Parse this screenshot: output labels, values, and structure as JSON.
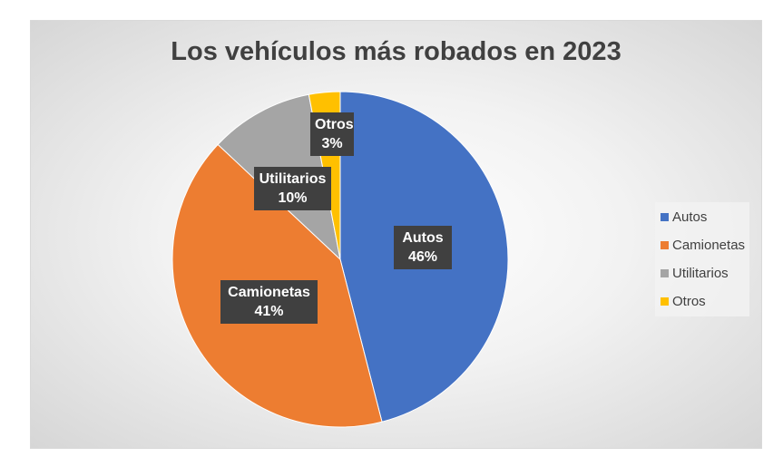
{
  "chart_data": {
    "type": "pie",
    "title": "Los vehículos más robados en 2023",
    "categories": [
      "Autos",
      "Camionetas",
      "Utilitarios",
      "Otros"
    ],
    "values": [
      46,
      41,
      10,
      3
    ],
    "value_labels": [
      "46%",
      "41%",
      "10%",
      "3%"
    ],
    "colors": [
      "#4472C4",
      "#ED7D31",
      "#A5A5A5",
      "#FFC000"
    ],
    "start_angle": "12 o'clock",
    "direction": "clockwise",
    "legend_placement": "right"
  }
}
